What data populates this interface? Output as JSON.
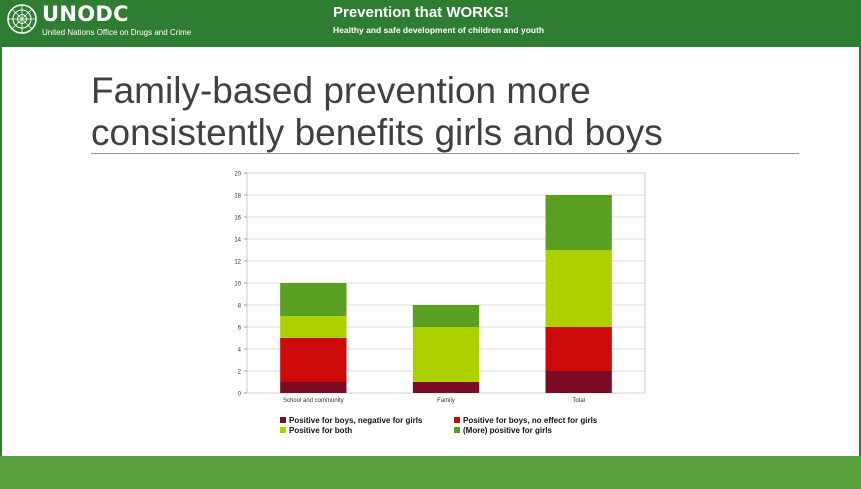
{
  "header": {
    "brand": "UNODC",
    "brand_subtitle": "United Nations Office on Drugs and Crime",
    "title": "Prevention that WORKS!",
    "subtitle": "Healthy and safe development of children and youth"
  },
  "slide": {
    "title_line1": "Family-based prevention more",
    "title_line2": "consistently benefits girls and boys"
  },
  "icons": {
    "logo": "un-emblem-icon"
  },
  "colors": {
    "header_green": "#2f7d32",
    "footer_green": "#58a13d",
    "series": [
      "#7b0c23",
      "#cc0a0a",
      "#afd000",
      "#5a9e22"
    ]
  },
  "chart_data": {
    "type": "bar",
    "stacked": true,
    "categories": [
      "School and community",
      "Family",
      "Total"
    ],
    "series": [
      {
        "name": "Positive for boys, negative for girls",
        "values": [
          1,
          1,
          2
        ]
      },
      {
        "name": "Positive for boys, no effect for girls",
        "values": [
          4,
          0,
          4
        ]
      },
      {
        "name": "Positive for both",
        "values": [
          2,
          5,
          7
        ]
      },
      {
        "name": "(More) positive for girls",
        "values": [
          3,
          2,
          5
        ]
      }
    ],
    "ylim": [
      0,
      20
    ],
    "yticks": [
      "0",
      "2",
      "4",
      "6",
      "8",
      "10",
      "12",
      "14",
      "16",
      "18",
      "20"
    ],
    "grid": true,
    "legend_position": "bottom"
  }
}
